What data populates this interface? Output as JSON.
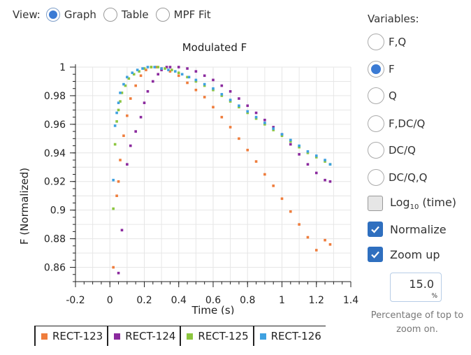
{
  "view": {
    "label": "View:",
    "options": [
      {
        "label": "Graph",
        "selected": true
      },
      {
        "label": "Table",
        "selected": false
      },
      {
        "label": "MPF Fit",
        "selected": false
      }
    ]
  },
  "variables": {
    "title": "Variables:",
    "options": [
      {
        "label": "F,Q",
        "selected": false
      },
      {
        "label": "F",
        "selected": true
      },
      {
        "label": "Q",
        "selected": false
      },
      {
        "label": "F,DC/Q",
        "selected": false
      },
      {
        "label": "DC/Q",
        "selected": false
      },
      {
        "label": "DC/Q,Q",
        "selected": false
      }
    ],
    "log_time": {
      "label_main": "Log",
      "label_sub": "10",
      "label_rest": " (time)",
      "checked": false
    },
    "normalize": {
      "label": "Normalize",
      "checked": true
    },
    "zoom_up": {
      "label": "Zoom up",
      "checked": true
    },
    "zoom_value": "15.0",
    "zoom_unit": "%",
    "zoom_help": "Percentage of top to zoom on."
  },
  "chart_data": {
    "type": "scatter",
    "title": "Modulated F",
    "xlabel": "Time (s)",
    "ylabel": "F (Normalized)",
    "xlim": [
      -0.2,
      1.4
    ],
    "ylim": [
      0.85,
      1.0
    ],
    "x_ticks": [
      "-0.2",
      "0",
      "0.2",
      "0.4",
      "0.6",
      "0.8",
      "1",
      "1.2",
      "1.4"
    ],
    "y_ticks": [
      "0.86",
      "0.88",
      "0.9",
      "0.92",
      "0.94",
      "0.96",
      "0.98",
      "1"
    ],
    "grid": true,
    "series": [
      {
        "name": "RECT-123",
        "color": "#ef7d3c",
        "x": [
          0.02,
          0.04,
          0.05,
          0.06,
          0.08,
          0.1,
          0.12,
          0.15,
          0.18,
          0.21,
          0.24,
          0.27,
          0.3,
          0.35,
          0.4,
          0.45,
          0.5,
          0.55,
          0.6,
          0.65,
          0.7,
          0.75,
          0.8,
          0.85,
          0.9,
          0.95,
          1.0,
          1.05,
          1.1,
          1.15,
          1.2,
          1.25,
          1.28
        ],
        "y": [
          0.86,
          0.91,
          0.92,
          0.935,
          0.952,
          0.966,
          0.978,
          0.987,
          0.994,
          0.998,
          1.0,
          1.0,
          0.999,
          0.997,
          0.994,
          0.989,
          0.984,
          0.979,
          0.972,
          0.965,
          0.958,
          0.95,
          0.942,
          0.934,
          0.925,
          0.917,
          0.908,
          0.899,
          0.89,
          0.881,
          0.872,
          0.879,
          0.876
        ]
      },
      {
        "name": "RECT-124",
        "color": "#8b2a9e",
        "x": [
          0.05,
          0.07,
          0.1,
          0.12,
          0.15,
          0.18,
          0.2,
          0.22,
          0.25,
          0.28,
          0.3,
          0.33,
          0.35,
          0.4,
          0.45,
          0.5,
          0.55,
          0.6,
          0.65,
          0.7,
          0.75,
          0.8,
          0.85,
          0.9,
          0.95,
          1.0,
          1.05,
          1.1,
          1.15,
          1.2,
          1.25,
          1.28
        ],
        "y": [
          0.856,
          0.886,
          0.932,
          0.945,
          0.955,
          0.965,
          0.975,
          0.983,
          0.99,
          0.995,
          0.998,
          1.0,
          1.0,
          1.0,
          0.999,
          0.997,
          0.994,
          0.991,
          0.987,
          0.983,
          0.978,
          0.973,
          0.968,
          0.963,
          0.958,
          0.953,
          0.946,
          0.939,
          0.932,
          0.926,
          0.921,
          0.92
        ]
      },
      {
        "name": "RECT-125",
        "color": "#8cc63f",
        "x": [
          0.02,
          0.03,
          0.04,
          0.05,
          0.06,
          0.07,
          0.09,
          0.11,
          0.14,
          0.17,
          0.2,
          0.24,
          0.28,
          0.32,
          0.36,
          0.4,
          0.45,
          0.5,
          0.55,
          0.6,
          0.65,
          0.7,
          0.75,
          0.8,
          0.85,
          0.9,
          0.95,
          1.0,
          1.05,
          1.1,
          1.15,
          1.2,
          1.25,
          1.28
        ],
        "y": [
          0.901,
          0.946,
          0.962,
          0.97,
          0.976,
          0.982,
          0.987,
          0.992,
          0.995,
          0.997,
          0.999,
          1.0,
          1.0,
          0.999,
          0.998,
          0.996,
          0.993,
          0.99,
          0.987,
          0.984,
          0.98,
          0.976,
          0.972,
          0.968,
          0.964,
          0.96,
          0.956,
          0.952,
          0.948,
          0.944,
          0.94,
          0.937,
          0.934,
          0.932
        ]
      },
      {
        "name": "RECT-126",
        "color": "#3fa1e0",
        "x": [
          0.02,
          0.03,
          0.04,
          0.05,
          0.06,
          0.08,
          0.1,
          0.13,
          0.16,
          0.19,
          0.22,
          0.26,
          0.3,
          0.34,
          0.38,
          0.42,
          0.46,
          0.5,
          0.55,
          0.6,
          0.65,
          0.7,
          0.75,
          0.8,
          0.85,
          0.9,
          0.95,
          1.0,
          1.05,
          1.1,
          1.15,
          1.2,
          1.25,
          1.28
        ],
        "y": [
          0.921,
          0.959,
          0.968,
          0.975,
          0.982,
          0.988,
          0.993,
          0.996,
          0.998,
          0.999,
          1.0,
          1.0,
          0.999,
          0.998,
          0.997,
          0.995,
          0.993,
          0.991,
          0.988,
          0.985,
          0.981,
          0.977,
          0.973,
          0.969,
          0.965,
          0.961,
          0.957,
          0.953,
          0.949,
          0.945,
          0.941,
          0.938,
          0.935,
          0.932
        ]
      }
    ]
  }
}
